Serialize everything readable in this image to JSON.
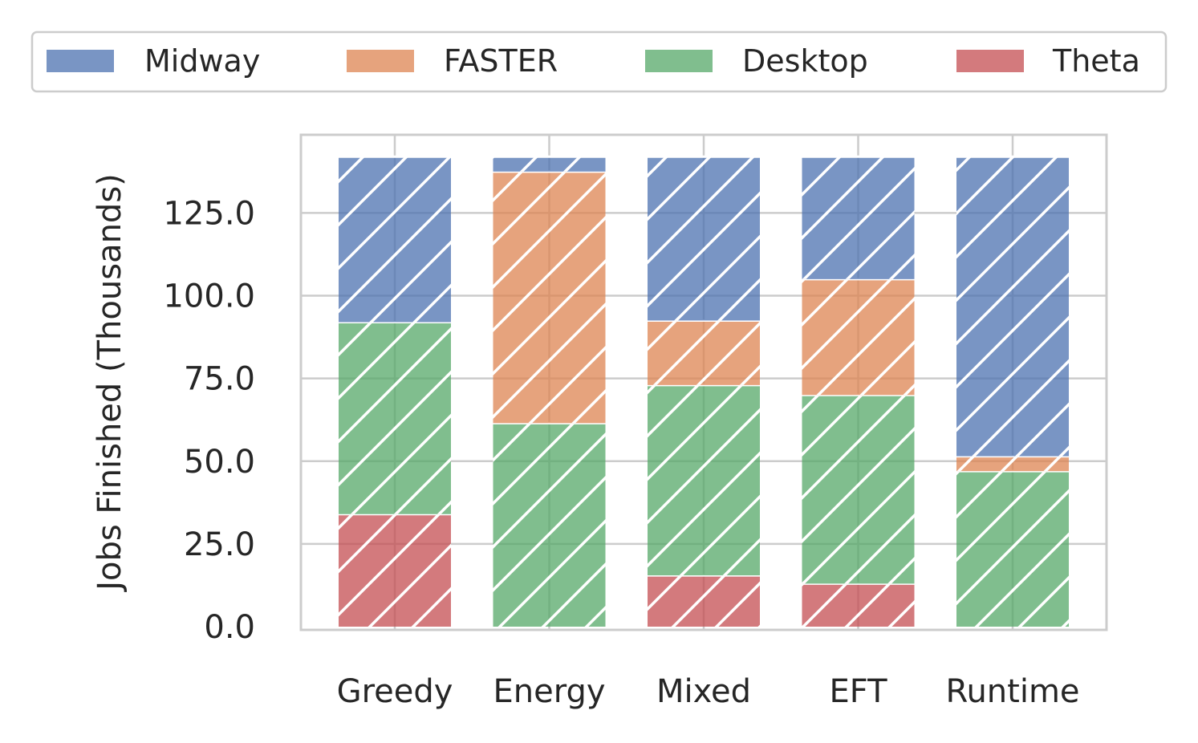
{
  "chart_data": {
    "type": "bar",
    "stacked": true,
    "hatch": "diagonal",
    "categories": [
      "Greedy",
      "Energy",
      "Mixed",
      "EFT",
      "Runtime"
    ],
    "series": [
      {
        "name": "Theta",
        "color": "#c44e52",
        "values": [
          34,
          0,
          15.5,
          13,
          0
        ]
      },
      {
        "name": "Desktop",
        "color": "#55a868",
        "values": [
          58,
          61.5,
          57.5,
          57,
          47
        ]
      },
      {
        "name": "FASTER",
        "color": "#dd8452",
        "values": [
          0,
          76,
          19.5,
          35,
          4.5
        ]
      },
      {
        "name": "Midway",
        "color": "#4c72b0",
        "values": [
          50,
          4.5,
          49.5,
          37,
          90.5
        ]
      }
    ],
    "legend_order": [
      "Midway",
      "FASTER",
      "Desktop",
      "Theta"
    ],
    "legend_position": "top",
    "xlabel": "",
    "ylabel": "Jobs Finished (Thousands)",
    "yticks": [
      "0.0",
      "25.0",
      "50.0",
      "75.0",
      "100.0",
      "125.0"
    ],
    "ylim": [
      0,
      148
    ],
    "grid": true
  }
}
